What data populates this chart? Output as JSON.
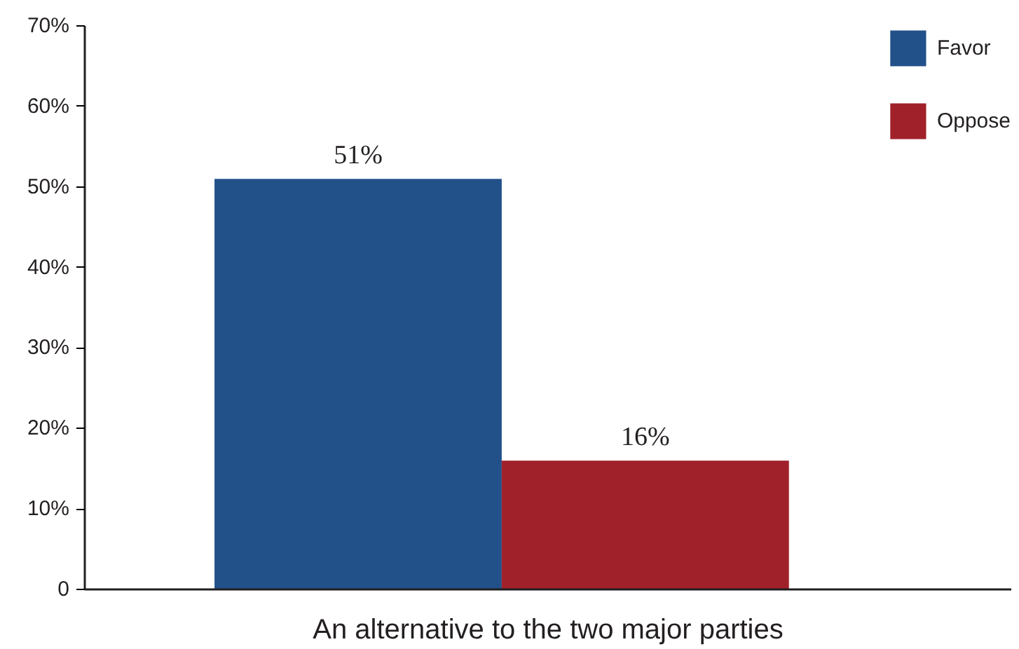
{
  "chart_data": {
    "type": "bar",
    "xlabel": "An alternative to the two major parties",
    "categories": [
      null
    ],
    "series": [
      {
        "name": "Favor",
        "color": "#22518a",
        "values": [
          51
        ],
        "value_labels": [
          "51%"
        ]
      },
      {
        "name": "Oppose",
        "color": "#a0212a",
        "values": [
          16
        ],
        "value_labels": [
          "16%"
        ]
      }
    ],
    "ylim": [
      0,
      70
    ],
    "yticks": [
      0,
      {
        "value": 10,
        "label": "10%"
      },
      {
        "value": 20,
        "label": "20%"
      },
      {
        "value": 30,
        "label": "30%"
      },
      {
        "value": 40,
        "label": "40%"
      },
      {
        "value": 50,
        "label": "50%"
      },
      {
        "value": 60,
        "label": "60%"
      },
      {
        "value": 70,
        "label": "70%"
      }
    ],
    "grid": false,
    "legend": "top right"
  }
}
